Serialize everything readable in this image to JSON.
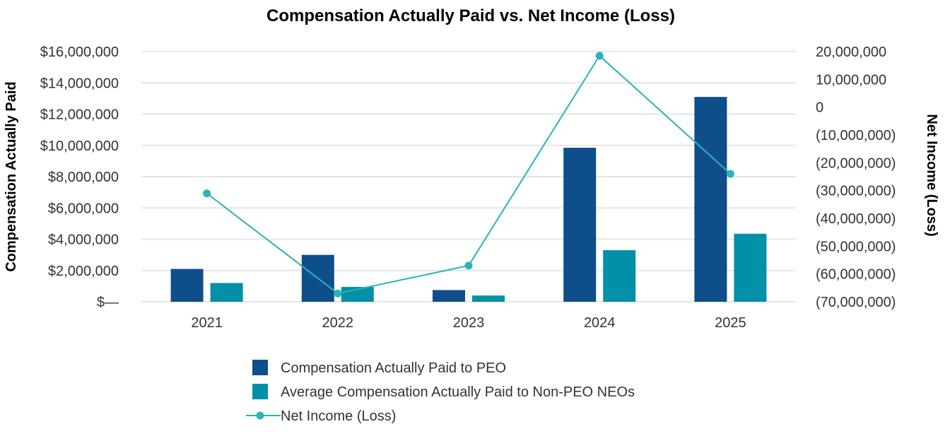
{
  "chart_data": {
    "type": "bar",
    "title": "Compensation Actually Paid vs. Net Income (Loss)",
    "categories": [
      "2021",
      "2022",
      "2023",
      "2024",
      "2025"
    ],
    "y_left": {
      "label": "Compensation Actually Paid",
      "range": [
        0,
        16000000
      ],
      "ticks": [
        0,
        2000000,
        4000000,
        6000000,
        8000000,
        10000000,
        12000000,
        14000000,
        16000000
      ],
      "tick_labels": [
        "$—",
        "$2,000,000",
        "$4,000,000",
        "$6,000,000",
        "$8,000,000",
        "$10,000,000",
        "$12,000,000",
        "$14,000,000",
        "$16,000,000"
      ]
    },
    "y_right": {
      "label": "Net Income (Loss)",
      "range": [
        -70000000,
        20000000
      ],
      "ticks": [
        20000000,
        10000000,
        0,
        -10000000,
        -20000000,
        -30000000,
        -40000000,
        -50000000,
        -60000000,
        -70000000
      ],
      "tick_labels": [
        "20,000,000",
        "10,000,000",
        "0",
        "(10,000,000)",
        "(20,000,000)",
        "(30,000,000)",
        "(40,000,000)",
        "(50,000,000)",
        "(60,000,000)",
        "(70,000,000)"
      ]
    },
    "series": [
      {
        "name": "Compensation Actually Paid to PEO",
        "type": "bar",
        "axis": "left",
        "color": "#0e4f8b",
        "values": [
          2100000,
          3000000,
          750000,
          9850000,
          13100000
        ]
      },
      {
        "name": "Average Compensation Actually Paid to Non-PEO NEOs",
        "type": "bar",
        "axis": "left",
        "color": "#0090a8",
        "values": [
          1200000,
          950000,
          400000,
          3300000,
          4350000
        ]
      },
      {
        "name": "Net Income (Loss)",
        "type": "line",
        "axis": "right",
        "color": "#2ab3b9",
        "values": [
          -31000000,
          -67000000,
          -57000000,
          18500000,
          -24000000
        ]
      }
    ],
    "grid": true,
    "legend_position": "bottom"
  }
}
